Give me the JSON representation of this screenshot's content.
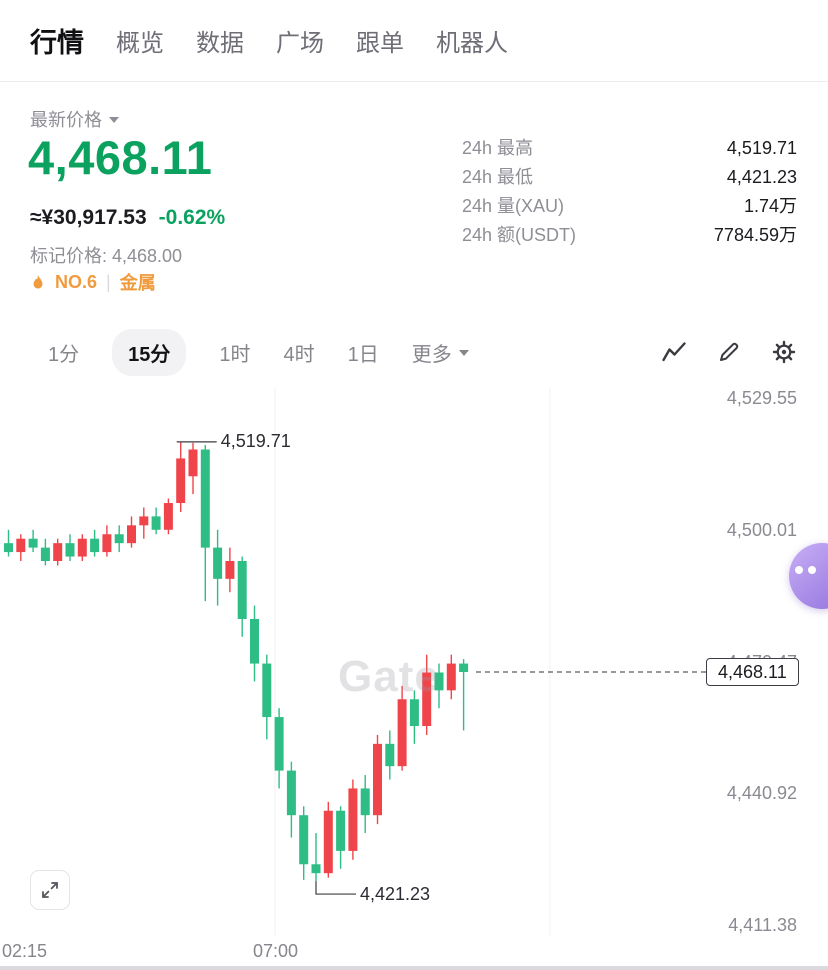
{
  "nav": {
    "items": [
      {
        "label": "行情",
        "active": true
      },
      {
        "label": "概览",
        "active": false
      },
      {
        "label": "数据",
        "active": false
      },
      {
        "label": "广场",
        "active": false
      },
      {
        "label": "跟单",
        "active": false
      },
      {
        "label": "机器人",
        "active": false
      }
    ]
  },
  "header": {
    "latest_price_label": "最新价格",
    "price": "4,468.11",
    "fiat_price": "≈¥30,917.53",
    "change_pct": "-0.62%",
    "mark_price": "标记价格: 4,468.00",
    "rank": "NO.6",
    "divider": "|",
    "category": "金属",
    "stats": [
      {
        "label": "24h 最高",
        "value": "4,519.71"
      },
      {
        "label": "24h 最低",
        "value": "4,421.23"
      },
      {
        "label": "24h 量(XAU)",
        "value": "1.74万"
      },
      {
        "label": "24h 额(USDT)",
        "value": "7784.59万"
      }
    ]
  },
  "timeframe": {
    "tabs": [
      {
        "label": "1分",
        "active": false
      },
      {
        "label": "15分",
        "active": true
      },
      {
        "label": "1时",
        "active": false
      },
      {
        "label": "4时",
        "active": false
      },
      {
        "label": "1日",
        "active": false
      },
      {
        "label": "更多",
        "active": false
      }
    ]
  },
  "chart_data": {
    "type": "candlestick",
    "watermark": "Gate",
    "up_color": "#ef454a",
    "down_color": "#2ebd85",
    "y_axis": {
      "max": 4529.55,
      "min": 4411.38,
      "tick_labels": [
        "4,529.55",
        "4,500.01",
        "4,470.47",
        "4,440.92",
        "4,411.38"
      ]
    },
    "x_labels": [
      "02:15",
      "07:00"
    ],
    "gridlines_x": [
      275,
      550
    ],
    "high_value": 4519.71,
    "high_label": "4,519.71",
    "high_candle_index": 14,
    "low_value": 4421.23,
    "low_label": "4,421.23",
    "low_candle_index": 25,
    "current_price_value": 4468.11,
    "current_price_label": "4,468.11",
    "candles": [
      [
        4497,
        4500,
        4494,
        4495
      ],
      [
        4495,
        4499,
        4493,
        4498
      ],
      [
        4498,
        4500,
        4495,
        4496
      ],
      [
        4496,
        4498,
        4492,
        4493
      ],
      [
        4493,
        4498,
        4492,
        4497
      ],
      [
        4497,
        4499,
        4493,
        4494
      ],
      [
        4494,
        4499,
        4493,
        4498
      ],
      [
        4498,
        4500,
        4494,
        4495
      ],
      [
        4495,
        4501,
        4494,
        4499
      ],
      [
        4499,
        4501,
        4495,
        4497
      ],
      [
        4497,
        4503,
        4496,
        4501
      ],
      [
        4501,
        4505,
        4498,
        4503
      ],
      [
        4503,
        4505,
        4499,
        4500
      ],
      [
        4500,
        4507,
        4499,
        4506
      ],
      [
        4506,
        4519.71,
        4504,
        4516
      ],
      [
        4512,
        4519.5,
        4508,
        4518
      ],
      [
        4518,
        4519,
        4484,
        4496
      ],
      [
        4496,
        4500,
        4483,
        4489
      ],
      [
        4489,
        4496,
        4486,
        4493
      ],
      [
        4493,
        4494,
        4476,
        4480
      ],
      [
        4480,
        4483,
        4466,
        4470
      ],
      [
        4470,
        4472,
        4453,
        4458
      ],
      [
        4458,
        4460,
        4442,
        4446
      ],
      [
        4446,
        4448,
        4431,
        4436
      ],
      [
        4436,
        4438,
        4421.5,
        4425
      ],
      [
        4425,
        4432,
        4421.23,
        4423
      ],
      [
        4423,
        4439,
        4422,
        4437
      ],
      [
        4437,
        4438,
        4424,
        4428
      ],
      [
        4428,
        4444,
        4426,
        4442
      ],
      [
        4442,
        4445,
        4432,
        4436
      ],
      [
        4436,
        4454,
        4434,
        4452
      ],
      [
        4452,
        4455,
        4444,
        4447
      ],
      [
        4447,
        4465,
        4446,
        4462
      ],
      [
        4462,
        4464,
        4452,
        4456
      ],
      [
        4456,
        4472,
        4454,
        4468
      ],
      [
        4468,
        4470,
        4460,
        4464
      ],
      [
        4464,
        4472,
        4462,
        4470
      ],
      [
        4470,
        4471,
        4455,
        4468.11
      ]
    ]
  }
}
